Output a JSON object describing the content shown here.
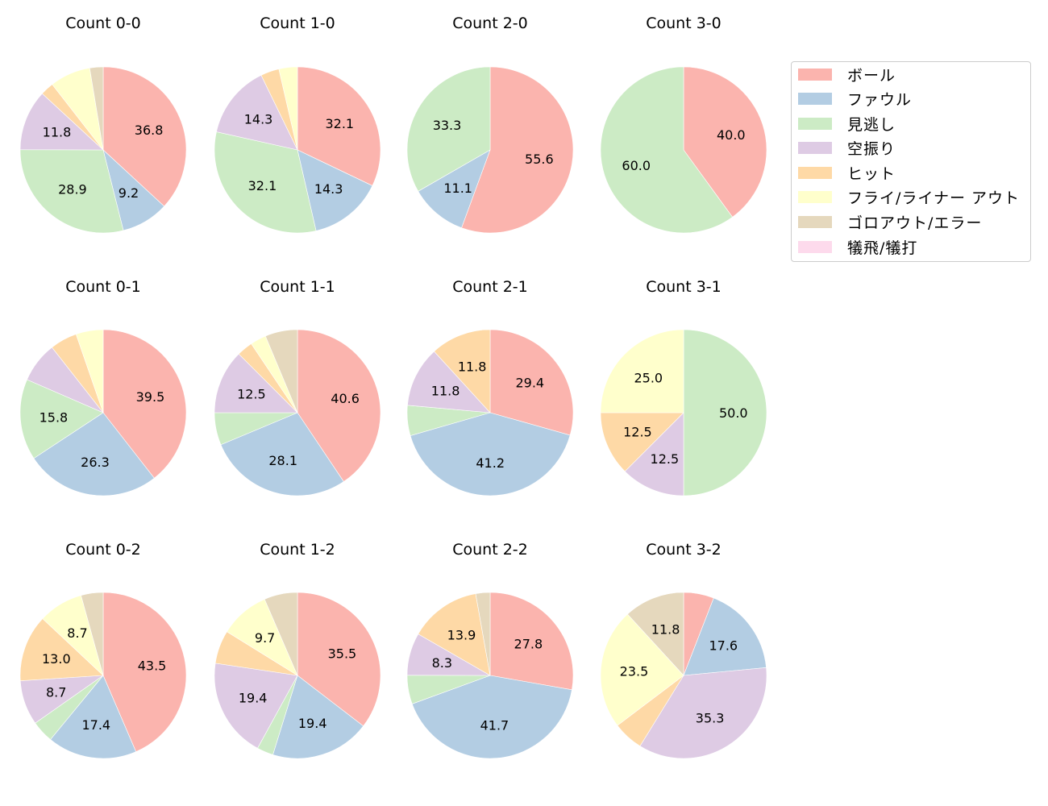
{
  "chart_data": {
    "type": "pie",
    "title": "",
    "legend": {
      "position": "upper right",
      "entries": [
        "ボール",
        "ファウル",
        "見逃し",
        "空振り",
        "ヒット",
        "フライ/ライナー アウト",
        "ゴロアウト/エラー",
        "犠飛/犠打"
      ]
    },
    "colors": [
      "#fbb4ae",
      "#b3cde3",
      "#ccebc5",
      "#decbe4",
      "#fed9a6",
      "#ffffcc",
      "#e5d8bd",
      "#fddaec"
    ],
    "categories": [
      "ボール",
      "ファウル",
      "見逃し",
      "空振り",
      "ヒット",
      "フライ/ライナー アウト",
      "ゴロアウト/エラー",
      "犠飛/犠打"
    ],
    "label_threshold_pct": 8,
    "charts": [
      {
        "title": "Count 0-0",
        "row": 0,
        "col": 0,
        "values": [
          36.8,
          9.2,
          28.9,
          11.8,
          2.6,
          7.9,
          2.6,
          0
        ]
      },
      {
        "title": "Count 1-0",
        "row": 0,
        "col": 1,
        "values": [
          32.1,
          14.3,
          32.1,
          14.3,
          3.6,
          3.6,
          0,
          0
        ]
      },
      {
        "title": "Count 2-0",
        "row": 0,
        "col": 2,
        "values": [
          55.6,
          11.1,
          33.3,
          0,
          0,
          0,
          0,
          0
        ]
      },
      {
        "title": "Count 3-0",
        "row": 0,
        "col": 3,
        "values": [
          40.0,
          0,
          60.0,
          0,
          0,
          0,
          0,
          0
        ]
      },
      {
        "title": "Count 0-1",
        "row": 1,
        "col": 0,
        "values": [
          39.5,
          26.3,
          15.8,
          7.9,
          5.3,
          5.3,
          0,
          0
        ]
      },
      {
        "title": "Count 1-1",
        "row": 1,
        "col": 1,
        "values": [
          40.6,
          28.1,
          6.3,
          12.5,
          3.1,
          3.1,
          6.3,
          0
        ]
      },
      {
        "title": "Count 2-1",
        "row": 1,
        "col": 2,
        "values": [
          29.4,
          41.2,
          5.9,
          11.8,
          11.8,
          0,
          0,
          0
        ]
      },
      {
        "title": "Count 3-1",
        "row": 1,
        "col": 3,
        "values": [
          0,
          0,
          50.0,
          12.5,
          12.5,
          25.0,
          0,
          0
        ]
      },
      {
        "title": "Count 0-2",
        "row": 2,
        "col": 0,
        "values": [
          43.5,
          17.4,
          4.3,
          8.7,
          13.0,
          8.7,
          4.3,
          0
        ]
      },
      {
        "title": "Count 1-2",
        "row": 2,
        "col": 1,
        "values": [
          35.5,
          19.4,
          3.2,
          19.4,
          6.5,
          9.7,
          6.5,
          0
        ]
      },
      {
        "title": "Count 2-2",
        "row": 2,
        "col": 2,
        "values": [
          27.8,
          41.7,
          5.6,
          8.3,
          13.9,
          0,
          2.8,
          0
        ]
      },
      {
        "title": "Count 3-2",
        "row": 2,
        "col": 3,
        "values": [
          5.9,
          17.6,
          0,
          35.3,
          5.9,
          23.5,
          11.8,
          0
        ]
      }
    ]
  }
}
